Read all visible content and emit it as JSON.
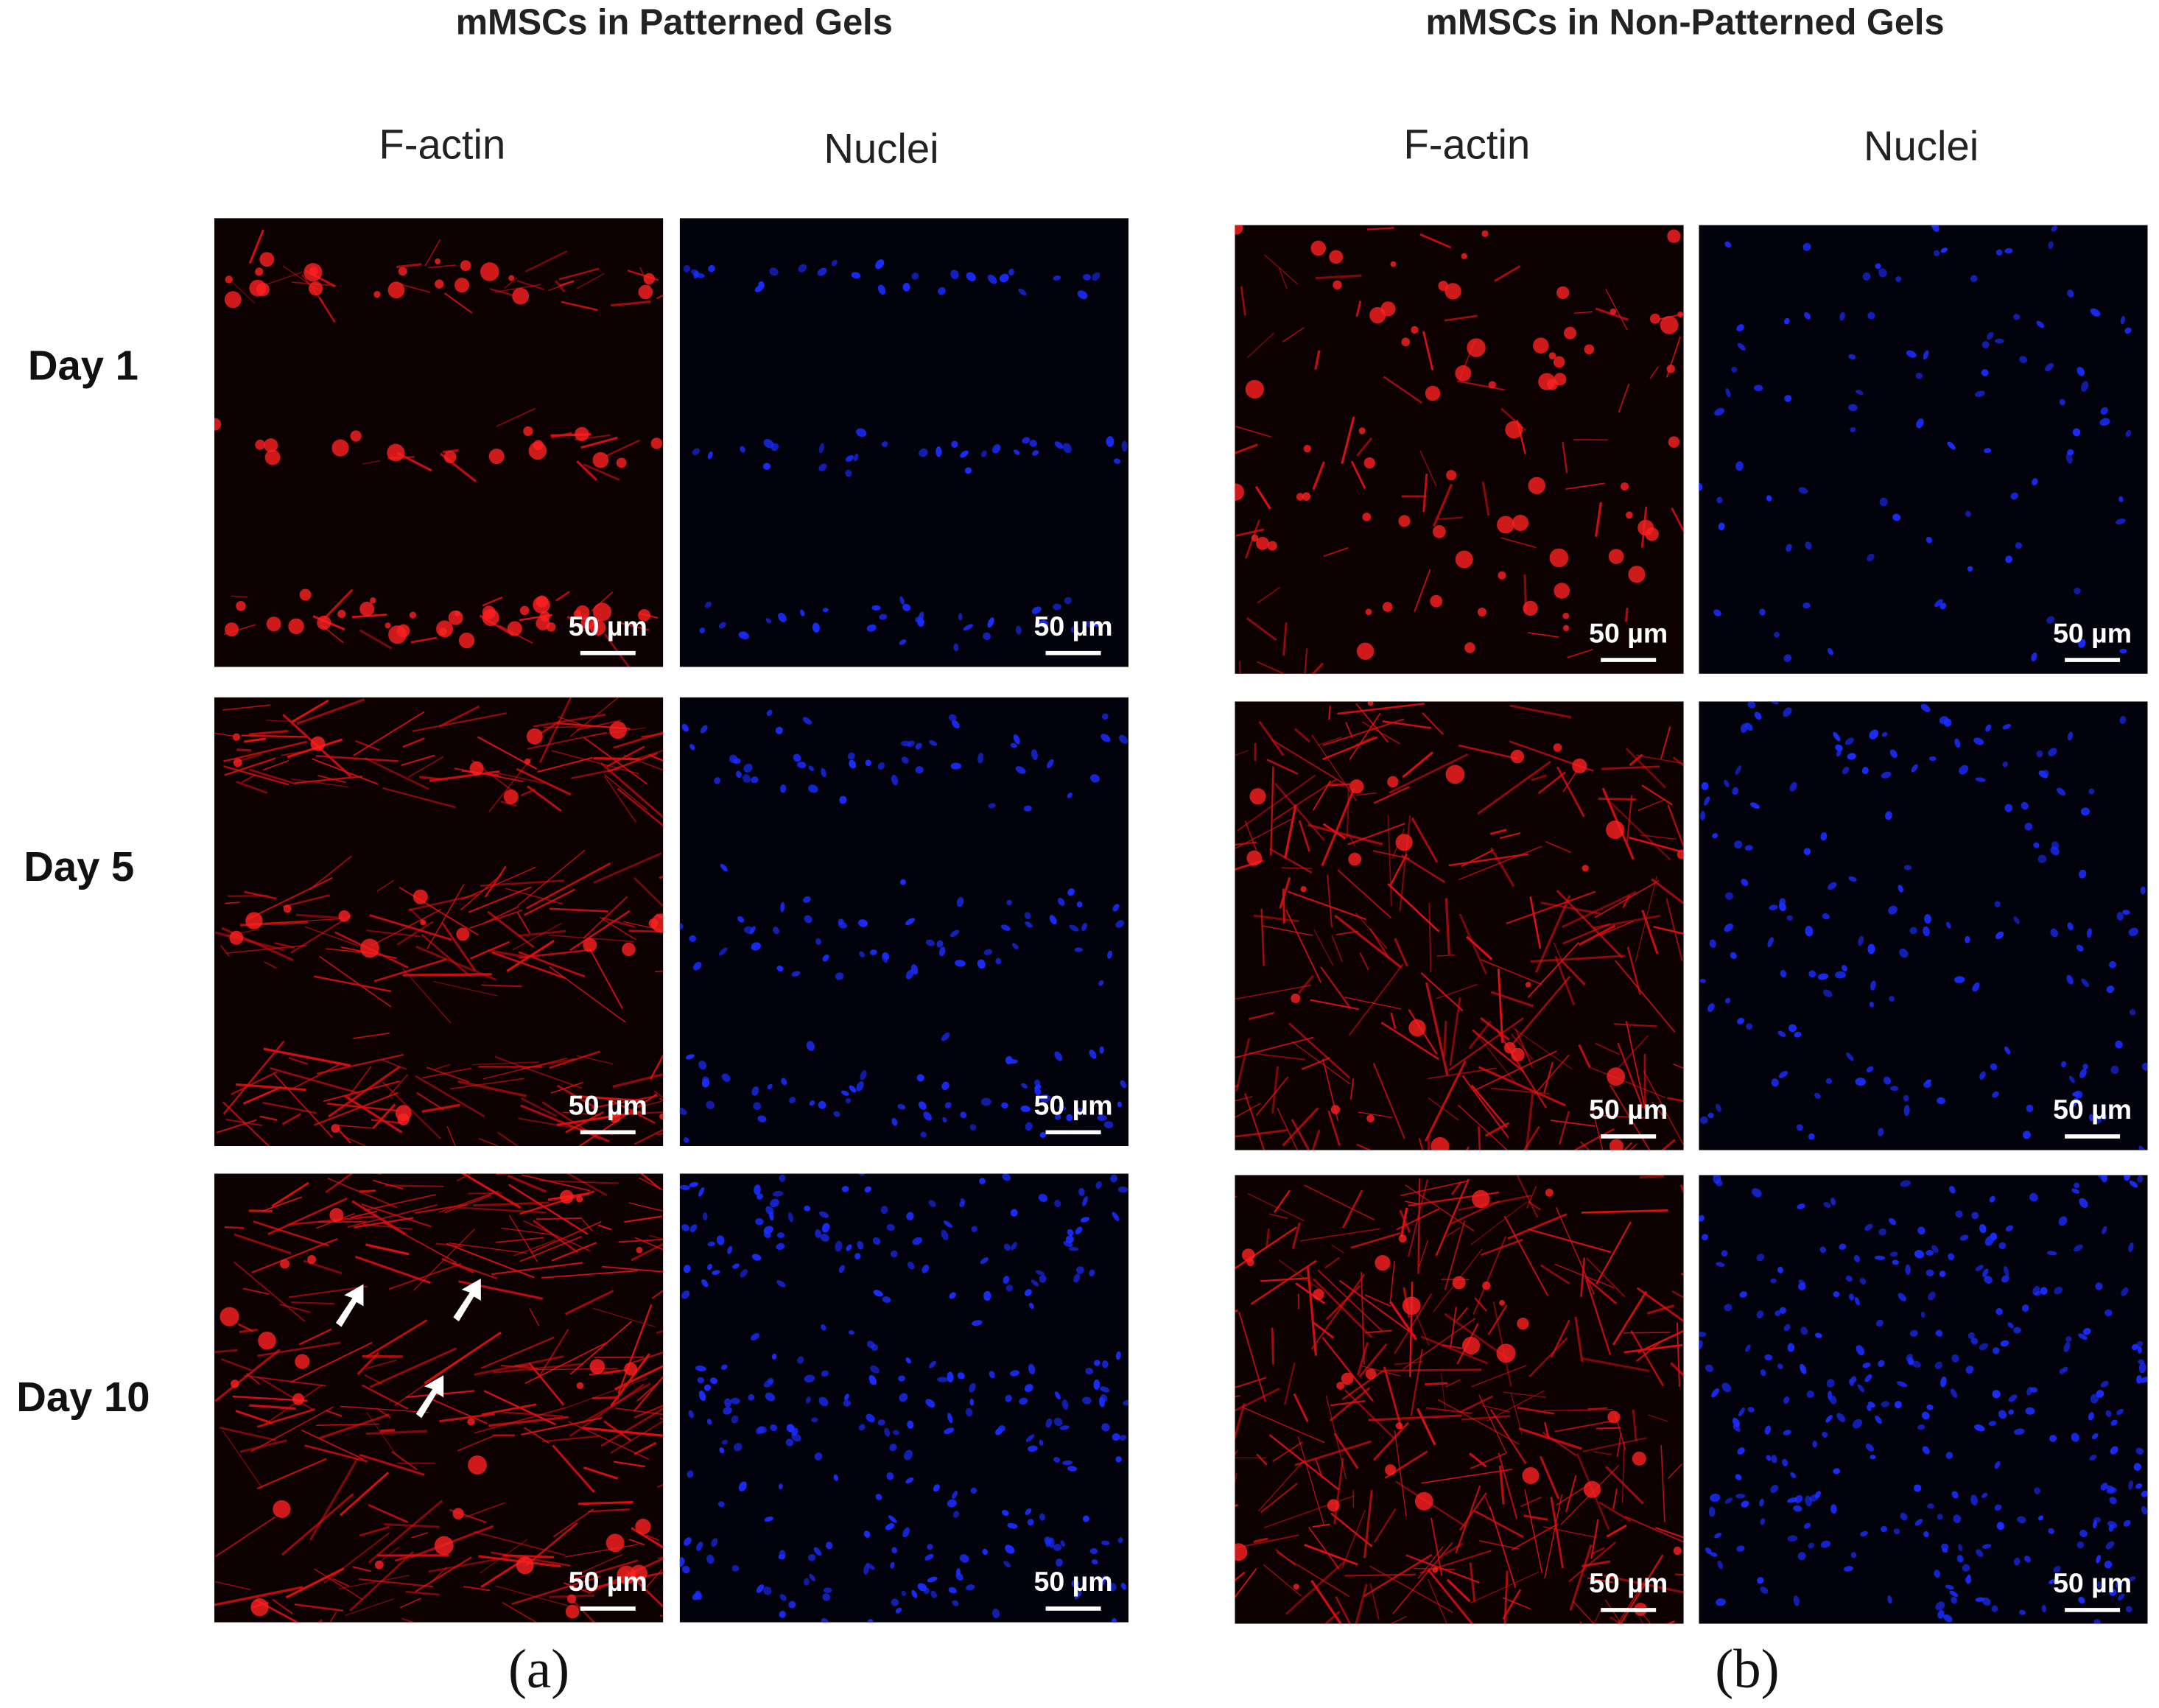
{
  "panels": [
    {
      "title": "mMSCs in Patterned Gels",
      "columns": [
        "F-actin",
        "Nuclei"
      ],
      "label": "(a)",
      "scale_bars": [
        [
          "50 µm",
          "50 µm"
        ],
        [
          "50 µm",
          "50 µm"
        ],
        [
          "50 µm",
          "50 µm"
        ]
      ]
    },
    {
      "title": "mMSCs in Non-Patterned Gels",
      "columns": [
        "F-actin",
        "Nuclei"
      ],
      "label": "(b)",
      "scale_bars": [
        [
          "50 µm",
          "50 µm"
        ],
        [
          "50 µm",
          "50 µm"
        ],
        [
          "50 µm",
          "50 µm"
        ]
      ]
    }
  ],
  "row_labels": [
    "Day 1",
    "Day 5",
    "Day 10"
  ]
}
